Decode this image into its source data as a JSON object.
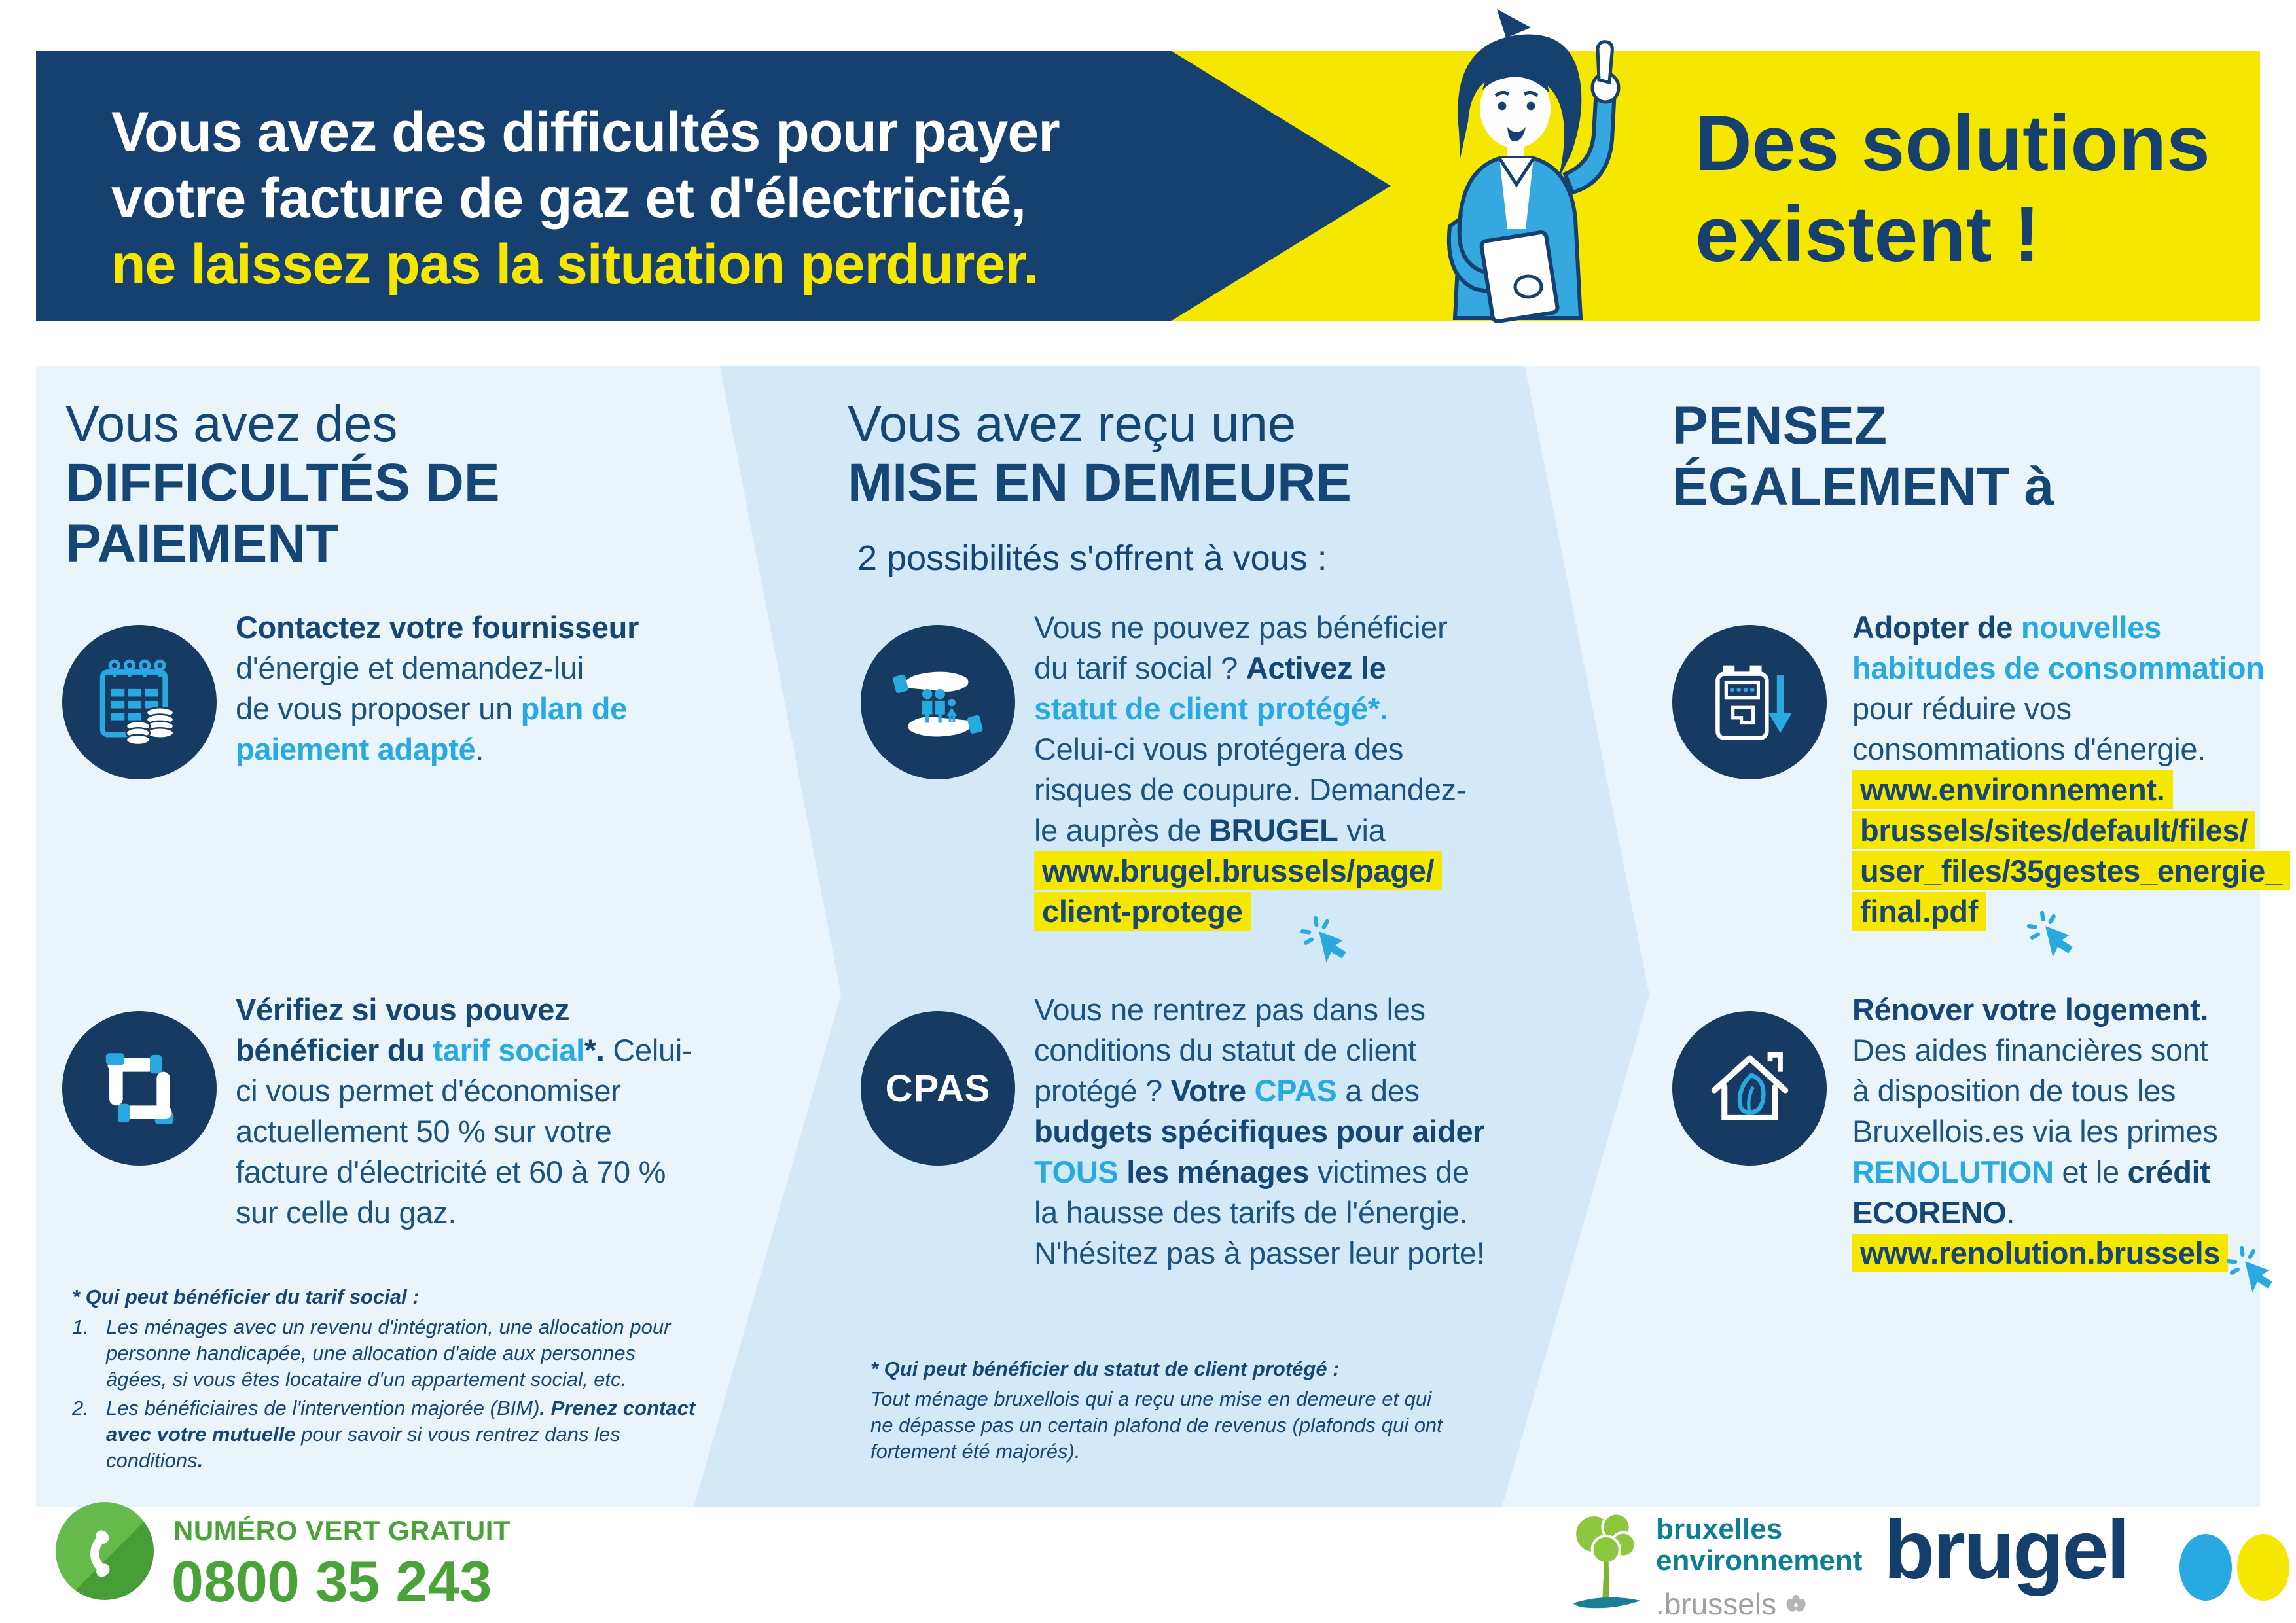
{
  "banner": {
    "line1": "Vous avez des difficultés pour payer",
    "line2": "votre facture de gaz et d'électricité,",
    "line3": "ne laissez pas la situation perdurer.",
    "solutions": "Des solutions\nexistent !"
  },
  "col1": {
    "title_light": "Vous avez des",
    "title_bold": "DIFFICULTÉS DE\nPAIEMENT",
    "item1": [
      {
        "s": "b",
        "t": "Contactez votre fournisseur\n"
      },
      {
        "s": "n",
        "t": "d'énergie et demandez-lui\nde vous proposer un "
      },
      {
        "s": "c",
        "t": "plan de\npaiement adapté"
      },
      {
        "s": "n",
        "t": "."
      }
    ],
    "item2": [
      {
        "s": "b",
        "t": "Vérifiez si vous pouvez\nbénéficier du "
      },
      {
        "s": "c",
        "t": "tarif social"
      },
      {
        "s": "b",
        "t": "*."
      },
      {
        "s": "n",
        "t": " Celui-\nci vous permet d'économiser\nactuellement 50 % sur votre\nfacture d'électricité et 60 à 70 %\nsur celle du gaz."
      }
    ],
    "footnote_title": "* Qui peut bénéficier du tarif social :",
    "fn_items": [
      {
        "num": "1.",
        "segs": [
          {
            "s": "i",
            "t": "Les ménages avec un revenu d'intégration, une allocation pour\npersonne handicapée, une allocation d'aide aux personnes\nâgées, si vous êtes locataire d'un appartement social, etc."
          }
        ]
      },
      {
        "num": "2.",
        "segs": [
          {
            "s": "i",
            "t": "Les bénéficiaires de l'intervention majorée (BIM)"
          },
          {
            "s": "bi",
            "t": ". Prenez contact\navec votre mutuelle"
          },
          {
            "s": "i",
            "t": " pour savoir si vous rentrez dans les\nconditions"
          },
          {
            "s": "bi",
            "t": "."
          }
        ]
      }
    ]
  },
  "col2": {
    "title_light": "Vous avez reçu une",
    "title_bold": "MISE EN DEMEURE",
    "subtitle": "2 possibilités s'offrent à vous :",
    "item1": [
      {
        "s": "n",
        "t": "Vous ne pouvez pas bénéficier\ndu tarif social ? "
      },
      {
        "s": "b",
        "t": "Activez le\n"
      },
      {
        "s": "c",
        "t": "statut de client protégé*."
      },
      {
        "s": "n",
        "t": "\nCelui-ci vous protégera des\nrisques de coupure. Demandez-\nle auprès de "
      },
      {
        "s": "b",
        "t": "BRUGEL"
      },
      {
        "s": "n",
        "t": " via\n"
      },
      {
        "s": "hl",
        "t": "www.brugel.brussels/page/\nclient-protege"
      }
    ],
    "cpas_label": "CPAS",
    "item2": [
      {
        "s": "n",
        "t": "Vous ne rentrez pas dans les\nconditions du statut de client\nprotégé ? "
      },
      {
        "s": "b",
        "t": "Votre "
      },
      {
        "s": "c",
        "t": "CPAS"
      },
      {
        "s": "n",
        "t": " a des\n"
      },
      {
        "s": "b",
        "t": "budgets spécifiques pour aider\n"
      },
      {
        "s": "c",
        "t": "TOUS"
      },
      {
        "s": "b",
        "t": " les ménages"
      },
      {
        "s": "n",
        "t": " victimes de\nla hausse des tarifs de l'énergie.\nN'hésitez pas à passer leur porte!"
      }
    ],
    "footnote_title": "* Qui peut bénéficier du statut de client protégé :",
    "footnote_body": "Tout ménage bruxellois qui a reçu une mise en demeure et qui\nne dépasse pas un certain plafond de revenus (plafonds qui ont\nfortement été majorés)."
  },
  "col3": {
    "title_bold": "PENSEZ\nÉGALEMENT à",
    "item1": [
      {
        "s": "b",
        "t": "Adopter de "
      },
      {
        "s": "c",
        "t": "nouvelles\nhabitudes de consommation\n"
      },
      {
        "s": "n",
        "t": "pour réduire vos\nconsommations d'énergie.\n"
      },
      {
        "s": "hl",
        "t": "www.environnement.\nbrussels/sites/default/files/\nuser_files/35gestes_energie_\nfinal.pdf"
      }
    ],
    "item2": [
      {
        "s": "b",
        "t": "Rénover votre logement.\n"
      },
      {
        "s": "n",
        "t": "Des aides financières sont\nà disposition de tous les\nBruxellois.es via les primes\n"
      },
      {
        "s": "c",
        "t": "RENOLUTION"
      },
      {
        "s": "n",
        "t": " et le "
      },
      {
        "s": "b",
        "t": "crédit\nECORENO"
      },
      {
        "s": "n",
        "t": ".\n"
      },
      {
        "s": "hl",
        "t": "www.renolution.brussels"
      }
    ]
  },
  "footer": {
    "phone_label": "NUMÉRO VERT GRATUIT",
    "phone_number": "0800 35 243",
    "env_line1": "bruxelles",
    "env_line2": "environnement",
    "env_line3": ".brussels",
    "brugel_text": "brugel"
  },
  "icons": {
    "col1_item1": "calendar-coins-icon",
    "col1_item2": "linked-hands-icon",
    "col2_item1": "hands-family-icon",
    "col2_item2": "cpas-badge",
    "col3_item1": "energy-meter-arrow-icon",
    "col3_item2": "house-leaf-icon",
    "links": "cursor-click-icon",
    "footer": [
      "phone-icon",
      "tree-logo-icon",
      "iris-icon"
    ]
  },
  "colors": {
    "navy": "#16406f",
    "text_navy": "#1d5381",
    "cyan": "#29a9e1",
    "yellow": "#f6e700",
    "band_light": "#e9f4fb",
    "band_mid": "#d4e9f7",
    "green": "#4aa339",
    "teal": "#0d7f92"
  }
}
